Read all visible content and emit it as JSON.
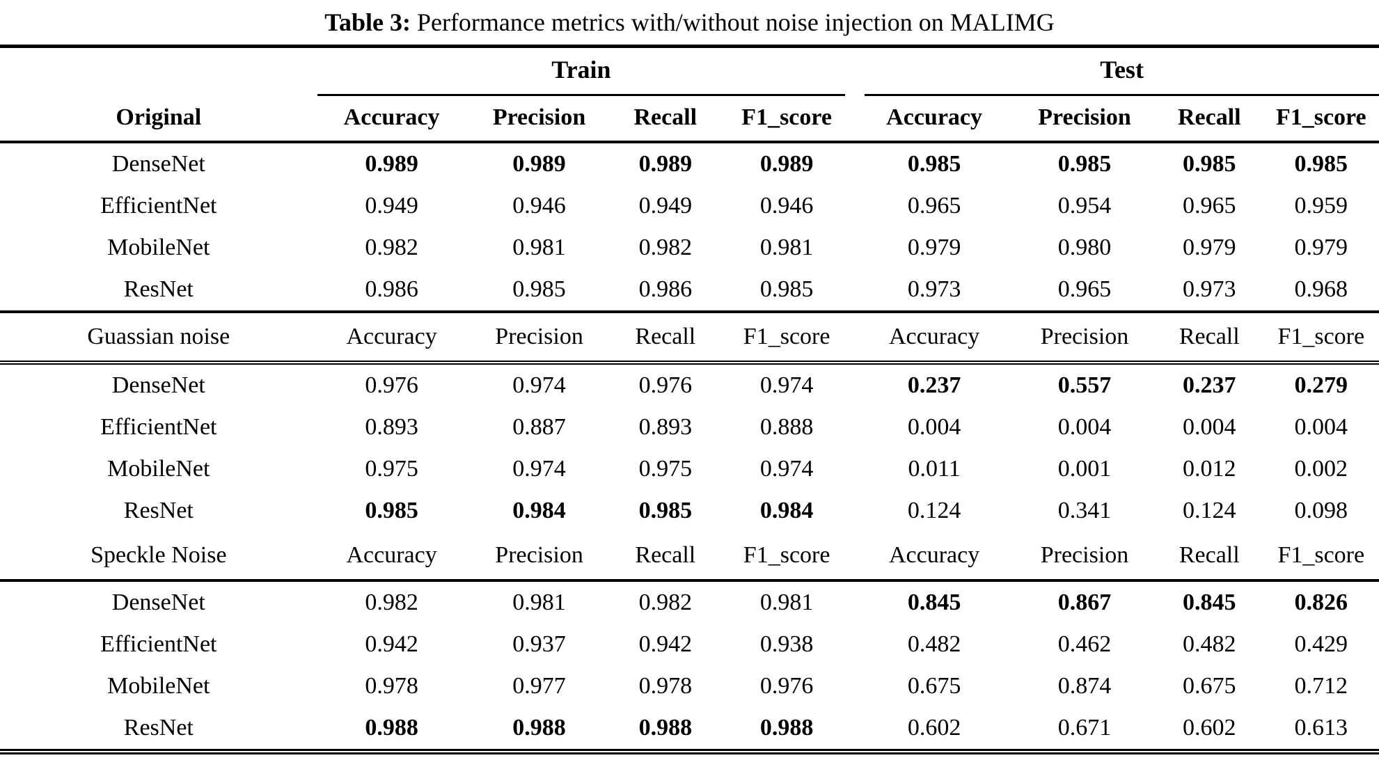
{
  "title": {
    "prefix": "Table 3:",
    "text": " Performance metrics with/without noise injection on MALIMG"
  },
  "table": {
    "group_headers": {
      "train": "Train",
      "test": "Test"
    },
    "sections": [
      {
        "label": "Original",
        "metrics": [
          "Accuracy",
          "Precision",
          "Recall",
          "F1_score",
          "Accuracy",
          "Precision",
          "Recall",
          "F1_score"
        ],
        "rows": [
          {
            "model": "DenseNet",
            "values": [
              "0.989",
              "0.989",
              "0.989",
              "0.989",
              "0.985",
              "0.985",
              "0.985",
              "0.985"
            ],
            "bold": [
              true,
              true,
              true,
              true,
              true,
              true,
              true,
              true
            ]
          },
          {
            "model": "EfficientNet",
            "values": [
              "0.949",
              "0.946",
              "0.949",
              "0.946",
              "0.965",
              "0.954",
              "0.965",
              "0.959"
            ],
            "bold": [
              false,
              false,
              false,
              false,
              false,
              false,
              false,
              false
            ]
          },
          {
            "model": "MobileNet",
            "values": [
              "0.982",
              "0.981",
              "0.982",
              "0.981",
              "0.979",
              "0.980",
              "0.979",
              "0.979"
            ],
            "bold": [
              false,
              false,
              false,
              false,
              false,
              false,
              false,
              false
            ]
          },
          {
            "model": "ResNet",
            "values": [
              "0.986",
              "0.985",
              "0.986",
              "0.985",
              "0.973",
              "0.965",
              "0.973",
              "0.968"
            ],
            "bold": [
              false,
              false,
              false,
              false,
              false,
              false,
              false,
              false
            ]
          }
        ]
      },
      {
        "label": "Guassian noise",
        "metrics": [
          "Accuracy",
          "Precision",
          "Recall",
          "F1_score",
          "Accuracy",
          "Precision",
          "Recall",
          "F1_score"
        ],
        "rows": [
          {
            "model": "DenseNet",
            "values": [
              "0.976",
              "0.974",
              "0.976",
              "0.974",
              "0.237",
              "0.557",
              "0.237",
              "0.279"
            ],
            "bold": [
              false,
              false,
              false,
              false,
              true,
              true,
              true,
              true
            ]
          },
          {
            "model": "EfficientNet",
            "values": [
              "0.893",
              "0.887",
              "0.893",
              "0.888",
              "0.004",
              "0.004",
              "0.004",
              "0.004"
            ],
            "bold": [
              false,
              false,
              false,
              false,
              false,
              false,
              false,
              false
            ]
          },
          {
            "model": "MobileNet",
            "values": [
              "0.975",
              "0.974",
              "0.975",
              "0.974",
              "0.011",
              "0.001",
              "0.012",
              "0.002"
            ],
            "bold": [
              false,
              false,
              false,
              false,
              false,
              false,
              false,
              false
            ]
          },
          {
            "model": "ResNet",
            "values": [
              "0.985",
              "0.984",
              "0.985",
              "0.984",
              "0.124",
              "0.341",
              "0.124",
              "0.098"
            ],
            "bold": [
              true,
              true,
              true,
              true,
              false,
              false,
              false,
              false
            ]
          }
        ]
      },
      {
        "label": "Speckle Noise",
        "metrics": [
          "Accuracy",
          "Precision",
          "Recall",
          "F1_score",
          "Accuracy",
          "Precision",
          "Recall",
          "F1_score"
        ],
        "rows": [
          {
            "model": "DenseNet",
            "values": [
              "0.982",
              "0.981",
              "0.982",
              "0.981",
              "0.845",
              "0.867",
              "0.845",
              "0.826"
            ],
            "bold": [
              false,
              false,
              false,
              false,
              true,
              true,
              true,
              true
            ]
          },
          {
            "model": "EfficientNet",
            "values": [
              "0.942",
              "0.937",
              "0.942",
              "0.938",
              "0.482",
              "0.462",
              "0.482",
              "0.429"
            ],
            "bold": [
              false,
              false,
              false,
              false,
              false,
              false,
              false,
              false
            ]
          },
          {
            "model": "MobileNet",
            "values": [
              "0.978",
              "0.977",
              "0.978",
              "0.976",
              "0.675",
              "0.874",
              "0.675",
              "0.712"
            ],
            "bold": [
              false,
              false,
              false,
              false,
              false,
              false,
              false,
              false
            ]
          },
          {
            "model": "ResNet",
            "values": [
              "0.988",
              "0.988",
              "0.988",
              "0.988",
              "0.602",
              "0.671",
              "0.602",
              "0.613"
            ],
            "bold": [
              true,
              true,
              true,
              true,
              false,
              false,
              false,
              false
            ]
          }
        ]
      }
    ]
  }
}
